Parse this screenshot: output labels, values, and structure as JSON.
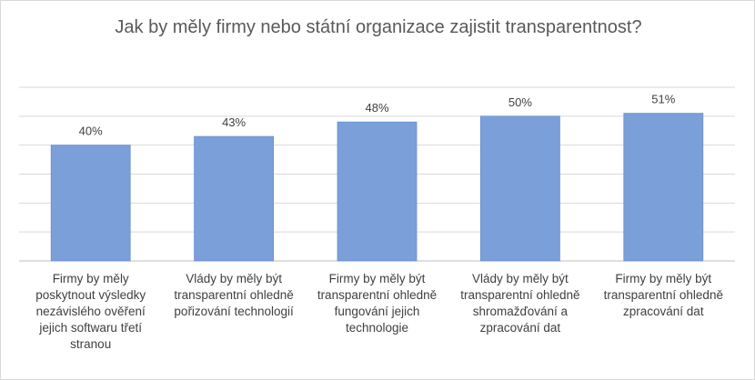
{
  "chart_data": {
    "type": "bar",
    "title": "Jak by měly firmy nebo státní organizace zajistit transparentnost?",
    "categories": [
      "Firmy by měly poskytnout výsledky nezávislého ověření jejich softwaru třetí stranou",
      "Vlády by měly být transparentní ohledně pořizování technologií",
      "Firmy by měly být transparentní ohledně fungování jejich technologie",
      "Vlády by měly být transparentní ohledně shromažďování a zpracování dat",
      "Firmy by měly být transparentní ohledně zpracování dat"
    ],
    "values": [
      40,
      43,
      48,
      50,
      51
    ],
    "data_labels": [
      "40%",
      "43%",
      "48%",
      "50%",
      "51%"
    ],
    "ylim": [
      0,
      60
    ],
    "grid": true,
    "legend": "none",
    "bar_color": "#7b9fd8",
    "bar_edge_color": "#6a8fcc",
    "grid_color": "#d9d9d9",
    "axis_color": "#bfbfbf"
  }
}
